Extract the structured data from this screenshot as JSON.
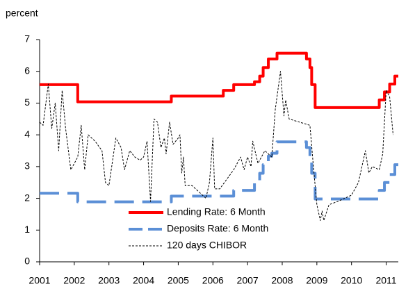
{
  "chart_data": {
    "type": "line",
    "y_label": "percent",
    "xlim": [
      2001,
      2011.35
    ],
    "xticks": [
      2001,
      2002,
      2003,
      2004,
      2005,
      2006,
      2007,
      2008,
      2009,
      2010,
      2011
    ],
    "ylim": [
      0,
      7
    ],
    "yticks": [
      0,
      1,
      2,
      3,
      4,
      5,
      6,
      7
    ],
    "grid": false,
    "legend": "center-bottom",
    "series": [
      {
        "name": "Lending Rate: 6 Month",
        "color": "#ff0000",
        "line_style": "solid",
        "line_width": 4,
        "x": [
          2001,
          2002.1,
          2002.1,
          2004.8,
          2004.8,
          2006.3,
          2006.3,
          2006.6,
          2006.6,
          2007.2,
          2007.2,
          2007.35,
          2007.35,
          2007.45,
          2007.45,
          2007.6,
          2007.6,
          2007.85,
          2007.85,
          2008.7,
          2008.7,
          2008.8,
          2008.8,
          2008.85,
          2008.85,
          2008.95,
          2008.95,
          2010.8,
          2010.8,
          2010.95,
          2010.95,
          2011.1,
          2011.1,
          2011.25,
          2011.25,
          2011.35
        ],
        "values": [
          5.58,
          5.58,
          5.04,
          5.04,
          5.22,
          5.22,
          5.4,
          5.4,
          5.58,
          5.58,
          5.67,
          5.67,
          5.85,
          5.85,
          6.12,
          6.12,
          6.39,
          6.39,
          6.57,
          6.57,
          6.39,
          6.39,
          6.12,
          6.12,
          5.58,
          5.58,
          4.86,
          4.86,
          5.1,
          5.1,
          5.35,
          5.35,
          5.6,
          5.6,
          5.85,
          5.85
        ]
      },
      {
        "name": "Deposits Rate: 6 Month",
        "color": "#5b8fd6",
        "line_style": "dashed",
        "line_width": 4,
        "x": [
          2001,
          2002.1,
          2002.1,
          2004.8,
          2004.8,
          2006.6,
          2006.6,
          2007.2,
          2007.2,
          2007.35,
          2007.35,
          2007.45,
          2007.45,
          2007.6,
          2007.6,
          2007.7,
          2007.7,
          2007.85,
          2007.85,
          2008.7,
          2008.7,
          2008.8,
          2008.8,
          2008.85,
          2008.85,
          2008.95,
          2008.95,
          2010.8,
          2010.8,
          2010.95,
          2010.95,
          2011.1,
          2011.1,
          2011.25,
          2011.25,
          2011.35
        ],
        "values": [
          2.16,
          2.16,
          1.89,
          1.89,
          2.07,
          2.07,
          2.25,
          2.25,
          2.52,
          2.52,
          2.79,
          2.79,
          3.06,
          3.06,
          3.33,
          3.33,
          3.42,
          3.42,
          3.78,
          3.78,
          3.6,
          3.6,
          3.33,
          3.33,
          2.79,
          2.79,
          1.98,
          1.98,
          2.25,
          2.25,
          2.5,
          2.5,
          2.75,
          2.75,
          3.06,
          3.06
        ]
      },
      {
        "name": "120 days CHIBOR",
        "color": "#000000",
        "line_style": "dotted",
        "line_width": 1,
        "x": [
          2001.0,
          2001.1,
          2001.25,
          2001.35,
          2001.45,
          2001.55,
          2001.65,
          2001.75,
          2001.9,
          2002.0,
          2002.1,
          2002.2,
          2002.3,
          2002.4,
          2002.6,
          2002.8,
          2002.9,
          2003.0,
          2003.2,
          2003.35,
          2003.45,
          2003.6,
          2003.75,
          2003.9,
          2004.0,
          2004.1,
          2004.2,
          2004.3,
          2004.4,
          2004.5,
          2004.6,
          2004.65,
          2004.75,
          2004.85,
          2005.0,
          2005.05,
          2005.1,
          2005.15,
          2005.2,
          2005.4,
          2005.6,
          2005.8,
          2005.9,
          2006.0,
          2006.05,
          2006.2,
          2006.4,
          2006.6,
          2006.8,
          2006.9,
          2007.0,
          2007.1,
          2007.15,
          2007.3,
          2007.5,
          2007.7,
          2007.8,
          2007.95,
          2008.05,
          2008.1,
          2008.2,
          2008.5,
          2008.8,
          2008.9,
          2009.0,
          2009.1,
          2009.15,
          2009.2,
          2009.35,
          2009.6,
          2009.8,
          2010.0,
          2010.2,
          2010.4,
          2010.5,
          2010.6,
          2010.8,
          2010.9,
          2011.0,
          2011.1,
          2011.2
        ],
        "values": [
          4.4,
          4.3,
          5.6,
          4.2,
          5.0,
          3.5,
          5.4,
          4.2,
          2.9,
          3.1,
          3.3,
          4.3,
          2.9,
          4.0,
          3.8,
          3.5,
          2.5,
          2.4,
          3.9,
          3.6,
          2.9,
          3.5,
          3.3,
          3.2,
          3.3,
          3.8,
          1.9,
          4.5,
          4.4,
          3.6,
          3.9,
          3.4,
          4.4,
          3.7,
          3.9,
          4.0,
          2.8,
          3.3,
          2.4,
          2.4,
          2.2,
          2.0,
          2.5,
          3.9,
          2.3,
          2.3,
          2.6,
          2.9,
          3.3,
          2.9,
          3.3,
          3.0,
          3.8,
          3.1,
          3.5,
          3.3,
          4.8,
          6.0,
          4.6,
          5.1,
          4.5,
          4.4,
          4.3,
          3.0,
          1.8,
          1.3,
          1.6,
          1.3,
          1.8,
          1.9,
          2.0,
          2.1,
          2.5,
          3.5,
          2.8,
          3.0,
          2.9,
          3.4,
          5.4,
          5.2,
          4.0
        ]
      }
    ]
  }
}
